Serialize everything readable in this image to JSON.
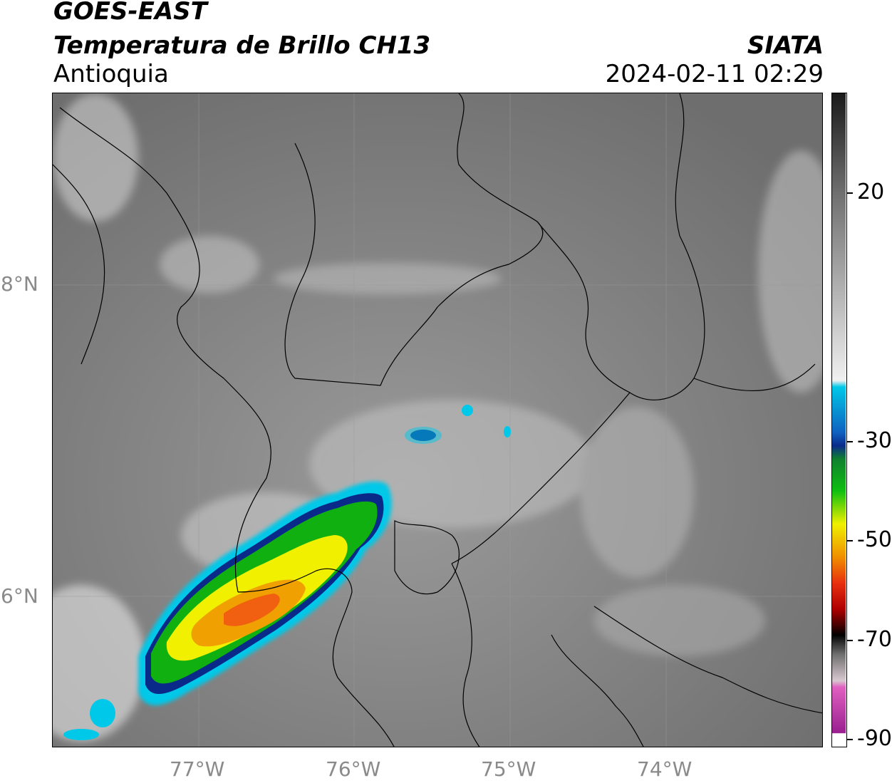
{
  "header": {
    "title_line1": "GOES-EAST",
    "title_line2": "Temperatura de Brillo CH13",
    "region": "Antioquia",
    "brand": "SIATA",
    "datetime": "2024-02-11 02:29"
  },
  "map": {
    "lat_labels": [
      "8°N",
      "6°N"
    ],
    "lon_labels": [
      "77°W",
      "76°W",
      "75°W",
      "74°W"
    ],
    "grid": true
  },
  "colorbar": {
    "tick_labels": [
      "20",
      "-30",
      "-50",
      "-70",
      "-90"
    ],
    "colors": {
      "warm_gray": "#6e6e6e",
      "light_gray": "#f0f0f0",
      "cyan": "#00c8e8",
      "blue": "#0a2a8a",
      "green": "#10b010",
      "yellow": "#f0f000",
      "orange": "#f06010",
      "red": "#d00000",
      "black": "#000000",
      "magenta": "#c040b0"
    }
  }
}
